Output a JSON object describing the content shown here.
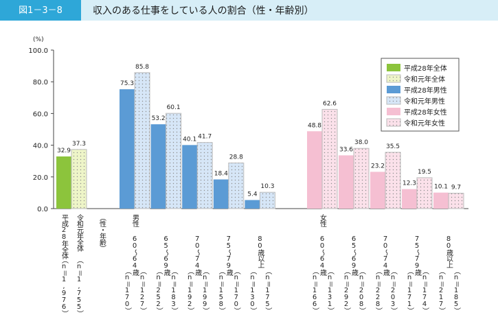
{
  "header": {
    "figure_number": "図1－3－8",
    "title": "収入のある仕事をしている人の割合（性・年齢別）"
  },
  "chart_data": {
    "type": "bar",
    "y_unit": "(%)",
    "categories": [
      null,
      "60～64歳",
      "65～69歳",
      "70～74歳",
      "75～79歳",
      "80歳以上",
      "60～64歳",
      "65～69歳",
      "70～74歳",
      "75～79歳",
      "80歳以上"
    ],
    "section_label": "（性・年齢）",
    "sex_labels": [
      "男性",
      "女性"
    ],
    "ylim": [
      0,
      100
    ],
    "yticks": [
      {
        "value": 0,
        "label": "0.0"
      },
      {
        "value": 20,
        "label": "20.0"
      },
      {
        "value": 40,
        "label": "40.0"
      },
      {
        "value": 60,
        "label": "60.0"
      },
      {
        "value": 80,
        "label": "80.0"
      },
      {
        "value": 100,
        "label": "100.0"
      }
    ],
    "legend": "top-right",
    "series": [
      {
        "name": "平成28年全体",
        "color": "#8cc43c",
        "dotted": false,
        "values": [
          32.9,
          null,
          null,
          null,
          null,
          null,
          null,
          null,
          null,
          null,
          null
        ],
        "n_labels": [
          "（n＝1,976）",
          null,
          null,
          null,
          null,
          null,
          null,
          null,
          null,
          null,
          null
        ]
      },
      {
        "name": "令和元年全体",
        "color": "#eef5c8",
        "dotted": true,
        "values": [
          37.3,
          null,
          null,
          null,
          null,
          null,
          null,
          null,
          null,
          null,
          null
        ],
        "n_labels": [
          "（n＝1,755）",
          null,
          null,
          null,
          null,
          null,
          null,
          null,
          null,
          null,
          null
        ]
      },
      {
        "name": "平成28年男性",
        "color": "#5b9bd5",
        "dotted": false,
        "values": [
          null,
          75.3,
          53.2,
          40.1,
          18.4,
          5.4,
          null,
          null,
          null,
          null,
          null
        ],
        "n_labels": [
          null,
          "（n＝170）",
          "（n＝252）",
          "（n＝192）",
          "（n＝158）",
          "（n＝130）",
          null,
          null,
          null,
          null,
          null
        ]
      },
      {
        "name": "令和元年男性",
        "color": "#d6e6f7",
        "dotted": true,
        "values": [
          null,
          85.8,
          60.1,
          41.7,
          28.8,
          10.3,
          null,
          null,
          null,
          null,
          null
        ],
        "n_labels": [
          null,
          "（n＝127）",
          "（n＝183）",
          "（n＝199）",
          "（n＝170）",
          "（n＝175）",
          null,
          null,
          null,
          null,
          null
        ]
      },
      {
        "name": "平成28年女性",
        "color": "#f5bfd2",
        "dotted": false,
        "values": [
          null,
          null,
          null,
          null,
          null,
          null,
          48.8,
          33.6,
          23.2,
          12.3,
          10.1
        ],
        "n_labels": [
          null,
          null,
          null,
          null,
          null,
          null,
          "（n＝166）",
          "（n＝292）",
          "（n＝228）",
          "（n＝171）",
          "（n＝217）"
        ]
      },
      {
        "name": "令和元年女性",
        "color": "#fbe1ea",
        "dotted": true,
        "values": [
          null,
          null,
          null,
          null,
          null,
          null,
          62.6,
          38.0,
          35.5,
          19.5,
          9.7
        ],
        "value_labels": [
          null,
          null,
          null,
          null,
          null,
          null,
          "62.6",
          "38.0",
          "35.5",
          "19.5",
          "9.7"
        ],
        "n_labels": [
          null,
          null,
          null,
          null,
          null,
          null,
          "（n＝131）",
          "（n＝208）",
          "（n＝203）",
          "（n＝174）",
          "（n＝185）"
        ]
      }
    ]
  }
}
